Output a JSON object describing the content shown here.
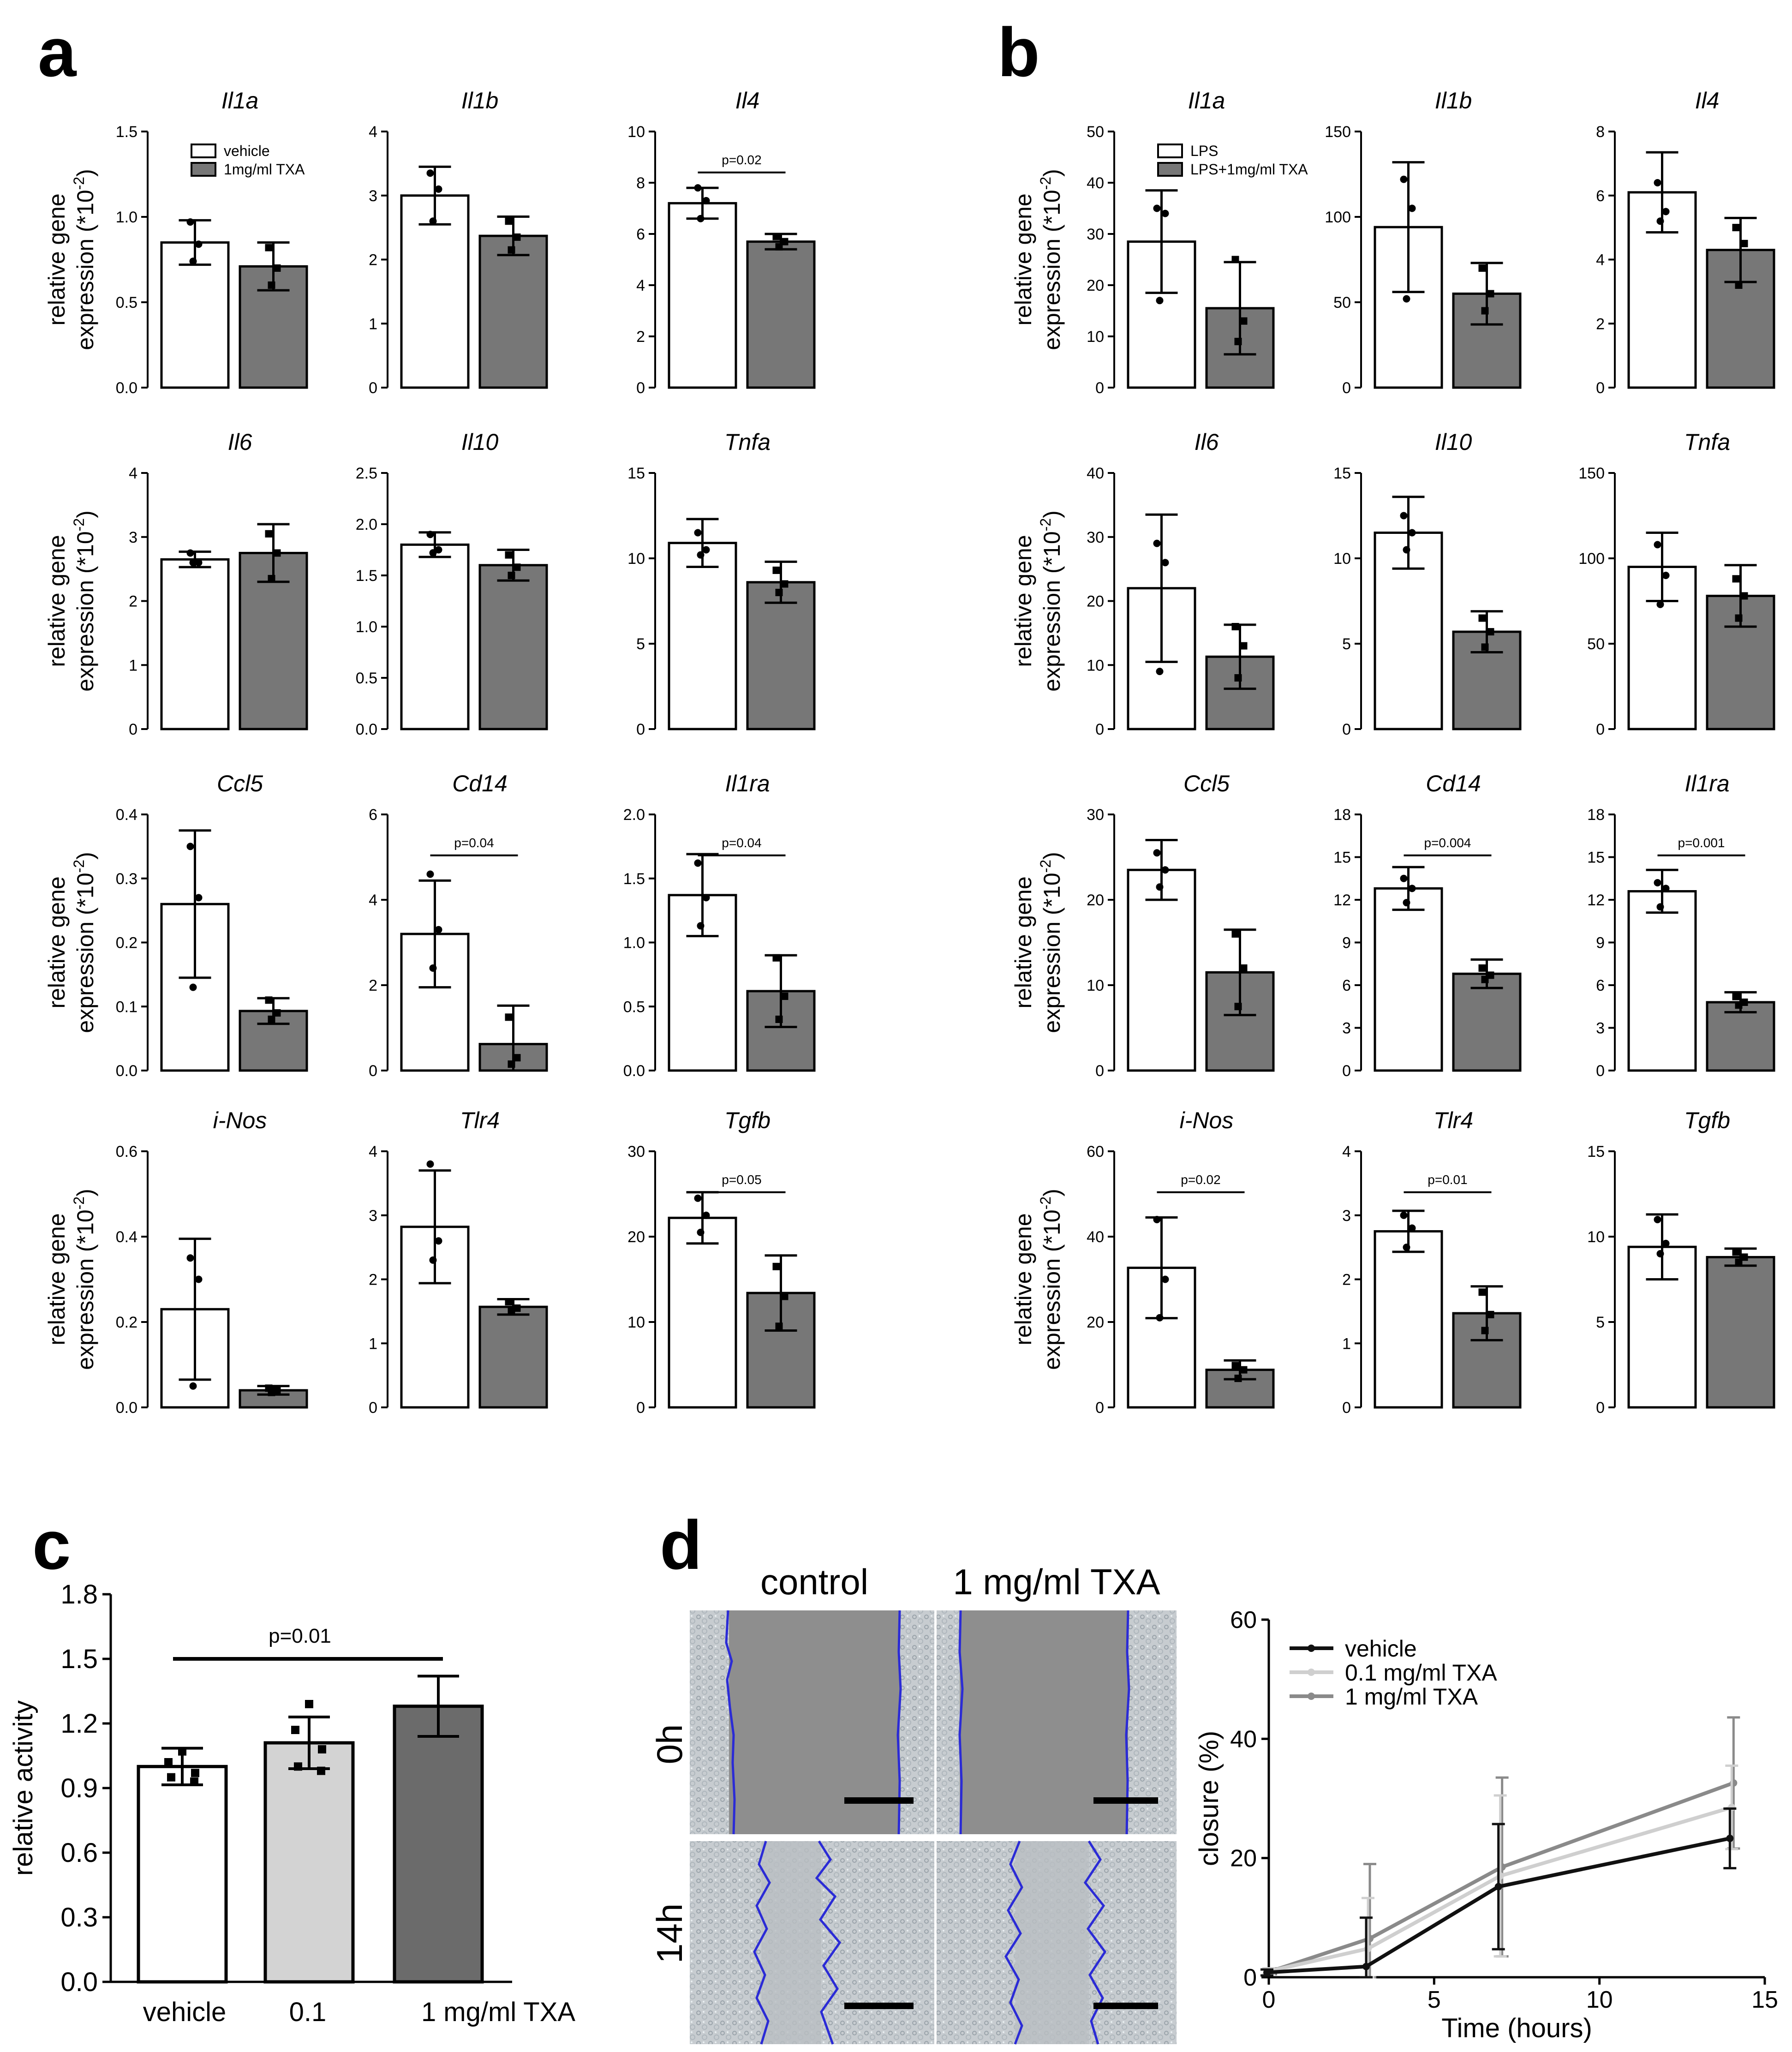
{
  "colors": {
    "white_bar": "#ffffff",
    "grey_bar": "#777777",
    "light_bar": "#d3d3d3",
    "dark_bar": "#6b6b6b",
    "vehicle_line": "#111111",
    "low_line": "#cfcfcf",
    "high_line": "#8a8a8a",
    "trace": "#2b2bd6"
  },
  "panel_labels": {
    "a": "a",
    "b": "b",
    "c": "c",
    "d": "d"
  },
  "ylabel_gene": [
    "relative gene",
    "expression (*10"
  ],
  "ylabel_gene_exp": "-2",
  "ylabel_gene_close": ")",
  "chart_data": [
    {
      "panel": "a",
      "type": "bar",
      "legend": [
        "vehicle",
        "1mg/ml TXA"
      ],
      "charts": [
        {
          "title": "Il1a",
          "ylim": [
            0,
            1.5
          ],
          "ticks": [
            "0.0",
            "0.5",
            "1.0",
            "1.5"
          ],
          "values": [
            0.85,
            0.71
          ],
          "errors": [
            0.13,
            0.14
          ],
          "points": [
            [
              0.97,
              0.84,
              0.74
            ],
            [
              0.82,
              0.7,
              0.6
            ]
          ]
        },
        {
          "title": "Il1b",
          "ylim": [
            0,
            4
          ],
          "ticks": [
            "0",
            "1",
            "2",
            "3",
            "4"
          ],
          "values": [
            3.0,
            2.37
          ],
          "errors": [
            0.45,
            0.3
          ],
          "points": [
            [
              3.35,
              3.1,
              2.6
            ],
            [
              2.6,
              2.35,
              2.15
            ]
          ]
        },
        {
          "title": "Il4",
          "ylim": [
            0,
            10
          ],
          "ticks": [
            "0",
            "2",
            "4",
            "6",
            "8",
            "10"
          ],
          "values": [
            7.2,
            5.7
          ],
          "errors": [
            0.6,
            0.3
          ],
          "points": [
            [
              7.8,
              7.3,
              6.6
            ],
            [
              5.9,
              5.7,
              5.5
            ]
          ],
          "p": "p=0.02"
        },
        {
          "title": "Il6",
          "ylim": [
            0,
            4
          ],
          "ticks": [
            "0",
            "1",
            "2",
            "3",
            "4"
          ],
          "values": [
            2.65,
            2.75
          ],
          "errors": [
            0.12,
            0.45
          ],
          "points": [
            [
              2.75,
              2.6,
              2.6
            ],
            [
              3.05,
              2.75,
              2.35
            ]
          ]
        },
        {
          "title": "Il10",
          "ylim": [
            0,
            2.5
          ],
          "ticks": [
            "0.0",
            "0.5",
            "1.0",
            "1.5",
            "2.0",
            "2.5"
          ],
          "values": [
            1.8,
            1.6
          ],
          "errors": [
            0.12,
            0.15
          ],
          "points": [
            [
              1.9,
              1.75,
              1.72
            ],
            [
              1.7,
              1.58,
              1.5
            ]
          ]
        },
        {
          "title": "Tnfa",
          "ylim": [
            0,
            15
          ],
          "ticks": [
            "0",
            "5",
            "10",
            "15"
          ],
          "values": [
            10.9,
            8.6
          ],
          "errors": [
            1.4,
            1.2
          ],
          "points": [
            [
              11.5,
              10.5,
              10.2
            ],
            [
              9.3,
              8.5,
              8.0
            ]
          ]
        },
        {
          "title": "Ccl5",
          "ylim": [
            0,
            0.4
          ],
          "ticks": [
            "0.0",
            "0.1",
            "0.2",
            "0.3",
            "0.4"
          ],
          "values": [
            0.26,
            0.093
          ],
          "errors": [
            0.115,
            0.02
          ],
          "points": [
            [
              0.35,
              0.27,
              0.13
            ],
            [
              0.11,
              0.09,
              0.08
            ]
          ]
        },
        {
          "title": "Cd14",
          "ylim": [
            0,
            6
          ],
          "ticks": [
            "0",
            "2",
            "4",
            "6"
          ],
          "values": [
            3.2,
            0.62
          ],
          "errors": [
            1.25,
            0.9
          ],
          "points": [
            [
              4.6,
              3.3,
              2.4
            ],
            [
              1.25,
              0.3,
              0.15
            ]
          ],
          "p": "p=0.04"
        },
        {
          "title": "Il1ra",
          "ylim": [
            0,
            2.0
          ],
          "ticks": [
            "0.0",
            "0.5",
            "1.0",
            "1.5",
            "2.0"
          ],
          "values": [
            1.37,
            0.62
          ],
          "errors": [
            0.32,
            0.28
          ],
          "points": [
            [
              1.62,
              1.35,
              1.13
            ],
            [
              0.88,
              0.58,
              0.4
            ]
          ],
          "p": "p=0.04"
        },
        {
          "title": "i-Nos",
          "ylim": [
            0,
            0.6
          ],
          "ticks": [
            "0.0",
            "0.2",
            "0.4",
            "0.6"
          ],
          "values": [
            0.23,
            0.04
          ],
          "errors": [
            0.165,
            0.01
          ],
          "points": [
            [
              0.35,
              0.3,
              0.05
            ],
            [
              0.045,
              0.04,
              0.035
            ]
          ]
        },
        {
          "title": "Tlr4",
          "ylim": [
            0,
            4
          ],
          "ticks": [
            "0",
            "1",
            "2",
            "3",
            "4"
          ],
          "values": [
            2.82,
            1.57
          ],
          "errors": [
            0.88,
            0.12
          ],
          "points": [
            [
              3.8,
              2.6,
              2.3
            ],
            [
              1.65,
              1.55,
              1.5
            ]
          ]
        },
        {
          "title": "Tgfb",
          "ylim": [
            0,
            30
          ],
          "ticks": [
            "0",
            "10",
            "20",
            "30"
          ],
          "values": [
            22.2,
            13.4
          ],
          "errors": [
            3.0,
            4.4
          ],
          "points": [
            [
              24.5,
              22.5,
              20.5
            ],
            [
              16.5,
              13.0,
              9.5
            ]
          ],
          "p": "p=0.05"
        }
      ]
    },
    {
      "panel": "b",
      "type": "bar",
      "legend": [
        "LPS",
        "LPS+1mg/ml TXA"
      ],
      "charts": [
        {
          "title": "Il1a",
          "ylim": [
            0,
            50
          ],
          "ticks": [
            "0",
            "10",
            "20",
            "30",
            "40",
            "50"
          ],
          "values": [
            28.5,
            15.5
          ],
          "errors": [
            10.0,
            9.0
          ],
          "points": [
            [
              35,
              34,
              17
            ],
            [
              25,
              13,
              9
            ]
          ]
        },
        {
          "title": "Il1b",
          "ylim": [
            0,
            150
          ],
          "ticks": [
            "0",
            "50",
            "100",
            "150"
          ],
          "values": [
            94,
            55
          ],
          "errors": [
            38,
            18
          ],
          "points": [
            [
              122,
              105,
              52
            ],
            [
              70,
              55,
              45
            ]
          ]
        },
        {
          "title": "Il4",
          "ylim": [
            0,
            8
          ],
          "ticks": [
            "0",
            "2",
            "4",
            "6",
            "8"
          ],
          "values": [
            6.1,
            4.3
          ],
          "errors": [
            1.25,
            1.0
          ],
          "points": [
            [
              6.4,
              5.5,
              5.2
            ],
            [
              5.0,
              4.5,
              3.2
            ]
          ]
        },
        {
          "title": "Il6",
          "ylim": [
            0,
            40
          ],
          "ticks": [
            "0",
            "10",
            "20",
            "30",
            "40"
          ],
          "values": [
            22,
            11.3
          ],
          "errors": [
            11.5,
            5.0
          ],
          "points": [
            [
              29,
              26,
              9
            ],
            [
              16,
              13,
              8
            ]
          ]
        },
        {
          "title": "Il10",
          "ylim": [
            0,
            15
          ],
          "ticks": [
            "0",
            "5",
            "10",
            "15"
          ],
          "values": [
            11.5,
            5.7
          ],
          "errors": [
            2.1,
            1.2
          ],
          "points": [
            [
              12.5,
              11.5,
              10.5
            ],
            [
              6.5,
              5.7,
              4.8
            ]
          ]
        },
        {
          "title": "Tnfa",
          "ylim": [
            0,
            150
          ],
          "ticks": [
            "0",
            "50",
            "100",
            "150"
          ],
          "values": [
            95,
            78
          ],
          "errors": [
            20,
            18
          ],
          "points": [
            [
              108,
              90,
              73
            ],
            [
              88,
              78,
              65
            ]
          ]
        },
        {
          "title": "Ccl5",
          "ylim": [
            0,
            30
          ],
          "ticks": [
            "0",
            "10",
            "20",
            "30"
          ],
          "values": [
            23.5,
            11.5
          ],
          "errors": [
            3.5,
            5.0
          ],
          "points": [
            [
              25.5,
              23.5,
              21.5
            ],
            [
              16,
              12,
              7.5
            ]
          ]
        },
        {
          "title": "Cd14",
          "ylim": [
            0,
            18
          ],
          "ticks": [
            "0",
            "3",
            "6",
            "9",
            "12",
            "15",
            "18"
          ],
          "values": [
            12.8,
            6.8
          ],
          "errors": [
            1.5,
            1.0
          ],
          "points": [
            [
              13.5,
              12.8,
              11.8
            ],
            [
              7.2,
              6.7,
              6.4
            ]
          ],
          "p": "p=0.004"
        },
        {
          "title": "Il1ra",
          "ylim": [
            0,
            18
          ],
          "ticks": [
            "0",
            "3",
            "6",
            "9",
            "12",
            "15",
            "18"
          ],
          "values": [
            12.6,
            4.8
          ],
          "errors": [
            1.5,
            0.7
          ],
          "points": [
            [
              13.2,
              12.8,
              11.5
            ],
            [
              5.2,
              4.8,
              4.6
            ]
          ],
          "p": "p=0.001"
        },
        {
          "title": "i-Nos",
          "ylim": [
            0,
            60
          ],
          "ticks": [
            "0",
            "20",
            "40",
            "60"
          ],
          "values": [
            32.7,
            8.8
          ],
          "errors": [
            11.8,
            2.2
          ],
          "points": [
            [
              44,
              30,
              21
            ],
            [
              9.8,
              8.8,
              6.8
            ]
          ],
          "p": "p=0.02"
        },
        {
          "title": "Tlr4",
          "ylim": [
            0,
            4
          ],
          "ticks": [
            "0",
            "1",
            "2",
            "3",
            "4"
          ],
          "values": [
            2.75,
            1.47
          ],
          "errors": [
            0.32,
            0.42
          ],
          "points": [
            [
              3.0,
              2.8,
              2.5
            ],
            [
              1.8,
              1.45,
              1.2
            ]
          ],
          "p": "p=0.01"
        },
        {
          "title": "Tgfb",
          "ylim": [
            0,
            15
          ],
          "ticks": [
            "0",
            "5",
            "10",
            "15"
          ],
          "values": [
            9.4,
            8.8
          ],
          "errors": [
            1.9,
            0.5
          ],
          "points": [
            [
              11.0,
              9.6,
              9.0
            ],
            [
              9.1,
              8.8,
              8.5
            ]
          ]
        }
      ]
    },
    {
      "panel": "c",
      "type": "bar",
      "ylabel": "relative activity",
      "ylim": [
        0,
        1.8
      ],
      "ticks": [
        "0.0",
        "0.3",
        "0.6",
        "0.9",
        "1.2",
        "1.5",
        "1.8"
      ],
      "categories": [
        "vehicle",
        "0.1",
        "1 mg/ml TXA"
      ],
      "values": [
        1.0,
        1.11,
        1.28
      ],
      "errors": [
        0.085,
        0.12,
        0.14
      ],
      "points": [
        [
          1.07,
          1.02,
          0.97,
          0.95,
          0.93
        ],
        [
          1.29,
          1.17,
          1.08,
          1.0,
          0.98
        ],
        []
      ],
      "p": "p=0.01"
    },
    {
      "panel": "d",
      "type": "line",
      "xlabel": "Time (hours)",
      "ylabel": "closure (%)",
      "xlim": [
        0,
        15
      ],
      "ylim": [
        0,
        60
      ],
      "xticks": [
        "0",
        "5",
        "10",
        "15"
      ],
      "yticks": [
        "0",
        "20",
        "40",
        "60"
      ],
      "x": [
        0,
        3,
        7,
        14
      ],
      "series": [
        {
          "name": "vehicle",
          "values": [
            0.8,
            1.8,
            15.2,
            23.3
          ],
          "errors": [
            0.5,
            8.2,
            10.5,
            5.0
          ]
        },
        {
          "name": "0.1 mg/ml TXA",
          "values": [
            1.0,
            4.8,
            17.0,
            28.5
          ],
          "errors": [
            0.5,
            8.5,
            13.5,
            7.0
          ]
        },
        {
          "name": "1 mg/ml TXA",
          "values": [
            1.0,
            6.5,
            18.5,
            32.6
          ],
          "errors": [
            0.5,
            12.5,
            15.0,
            11.0
          ]
        }
      ]
    }
  ],
  "micrographs": {
    "columns": [
      "control",
      "1 mg/ml TXA"
    ],
    "rows": [
      "0h",
      "14h"
    ]
  }
}
